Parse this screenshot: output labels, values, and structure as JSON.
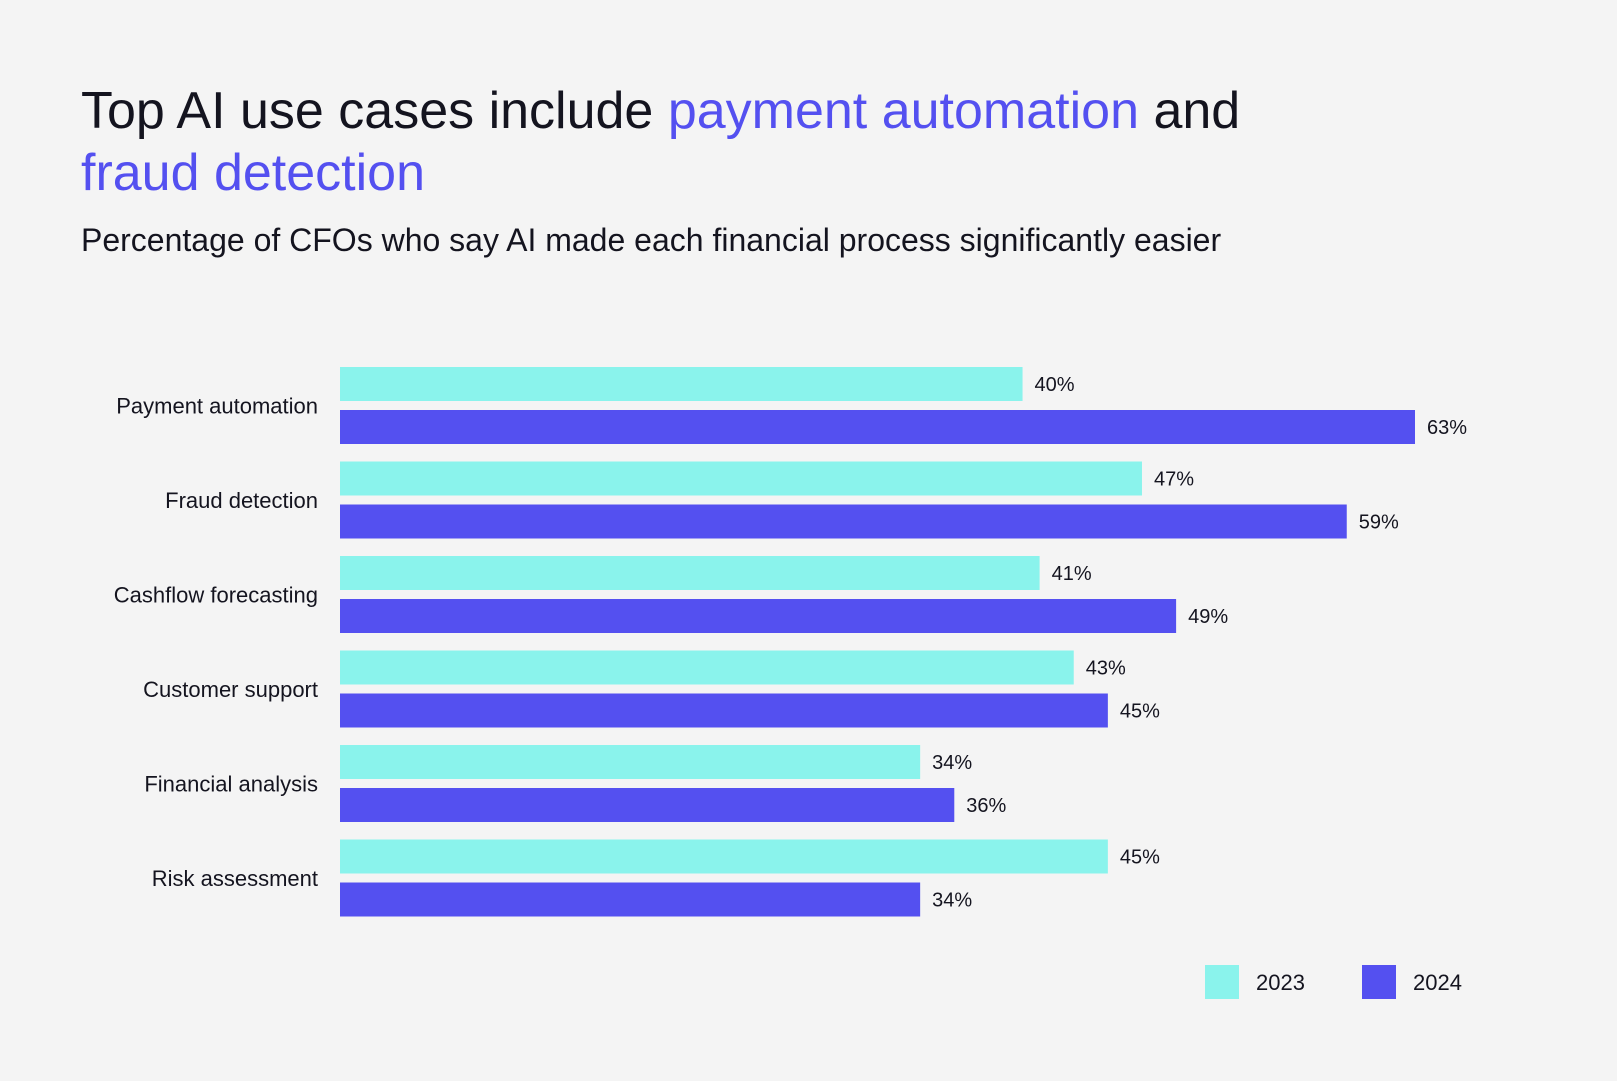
{
  "title": {
    "part1": "Top AI use cases include ",
    "highlight1": "payment automation",
    "part2": " and",
    "highlight2": "fraud detection"
  },
  "subtitle": "Percentage of CFOs who say AI made each financial process significantly easier",
  "colors": {
    "series_2023": "#8af3ec",
    "series_2024": "#5450f0",
    "highlight": "#5450f0",
    "background": "#f4f4f4"
  },
  "chart_data": {
    "type": "bar",
    "orientation": "horizontal",
    "categories": [
      "Payment automation",
      "Fraud detection",
      "Cashflow forecasting",
      "Customer support",
      "Financial analysis",
      "Risk assessment"
    ],
    "series": [
      {
        "name": "2023",
        "values": [
          40,
          47,
          41,
          43,
          34,
          45
        ],
        "labels": [
          "40%",
          "47%",
          "41%",
          "43%",
          "34%",
          "45%"
        ]
      },
      {
        "name": "2024",
        "values": [
          63,
          59,
          49,
          45,
          36,
          34
        ],
        "labels": [
          "63%",
          "59%",
          "49%",
          "45%",
          "36%",
          "34%"
        ]
      }
    ],
    "xlim": [
      0,
      63
    ],
    "grid": false,
    "legend_position": "bottom-right",
    "unit": "%"
  }
}
